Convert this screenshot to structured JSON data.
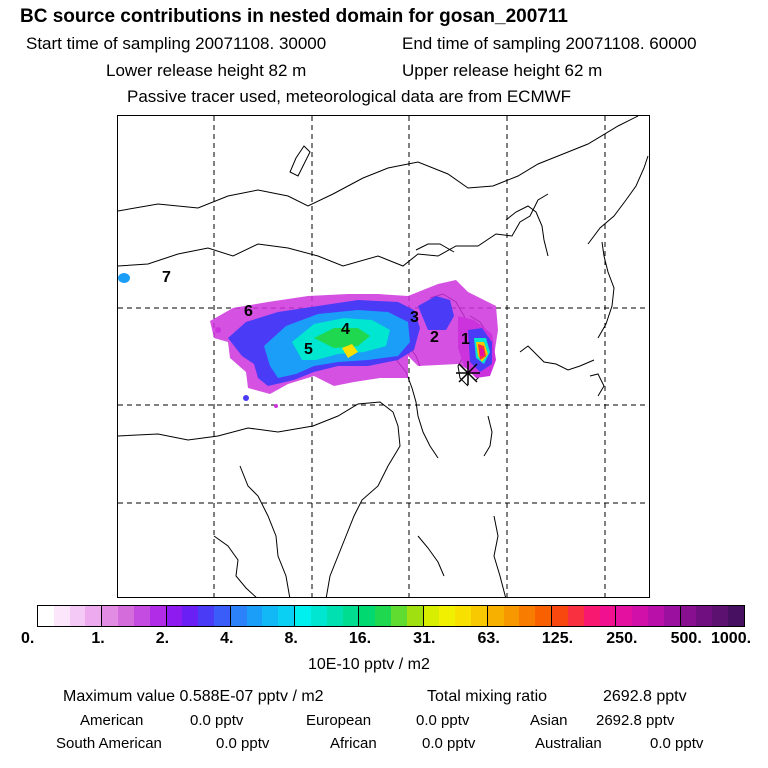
{
  "header": {
    "title": "BC  source contributions in nested domain for gosan_200711",
    "start_label": "Start time of sampling 20071108. 30000",
    "end_label": "End time of sampling 20071108. 60000",
    "lower_label": "Lower release height   82 m",
    "upper_label": "Upper release height   62 m",
    "tracer_note": "Passive tracer used, meteorological data are from ECMWF"
  },
  "map": {
    "region_labels": [
      "7",
      "6",
      "4",
      "5",
      "3",
      "2",
      "1"
    ],
    "receptor_marker": "asterisk-icon"
  },
  "colorbar": {
    "ticks": [
      "0.",
      "1.",
      "2.",
      "4.",
      "8.",
      "16.",
      "31.",
      "63.",
      "125.",
      "250.",
      "500.",
      "1000."
    ],
    "units": "10E-10 pptv / m2",
    "colors": [
      [
        "#ffffff",
        "#fbe6fb",
        "#f5c9f5",
        "#eeaaee"
      ],
      [
        "#e38ce3",
        "#d46cdc",
        "#c54ce0",
        "#b02ce6"
      ],
      [
        "#8e1cf0",
        "#6a20f4",
        "#4a3cf6",
        "#3a5cf8"
      ],
      [
        "#2c82f8",
        "#1a9ef8",
        "#12b8f6",
        "#0ad0f4"
      ],
      [
        "#00f0f0",
        "#00e6d0",
        "#00e0b0",
        "#00dc90"
      ],
      [
        "#00d870",
        "#20d850",
        "#60dc30",
        "#a0e010"
      ],
      [
        "#d8ee00",
        "#f0f000",
        "#f8e000",
        "#f8c800"
      ],
      [
        "#f8b000",
        "#f89800",
        "#f87c00",
        "#f86000"
      ],
      [
        "#f84810",
        "#f83040",
        "#f81870",
        "#f01090"
      ],
      [
        "#e410a0",
        "#d010a8",
        "#b810a8",
        "#9c10a0"
      ],
      [
        "#881090",
        "#701080",
        "#5c1070",
        "#481060"
      ]
    ]
  },
  "summary": {
    "max_label": "Maximum value  0.588E-07 pptv / m2",
    "total_label": "Total mixing ratio",
    "total_value": "2692.8 pptv",
    "rows": [
      [
        {
          "name": "American",
          "value": "0.0 pptv"
        },
        {
          "name": "European",
          "value": "0.0 pptv"
        },
        {
          "name": "Asian",
          "value": "2692.8 pptv"
        }
      ],
      [
        {
          "name": "South American",
          "value": "0.0 pptv"
        },
        {
          "name": "African",
          "value": "0.0 pptv"
        },
        {
          "name": "Australian",
          "value": "0.0 pptv"
        }
      ]
    ]
  }
}
